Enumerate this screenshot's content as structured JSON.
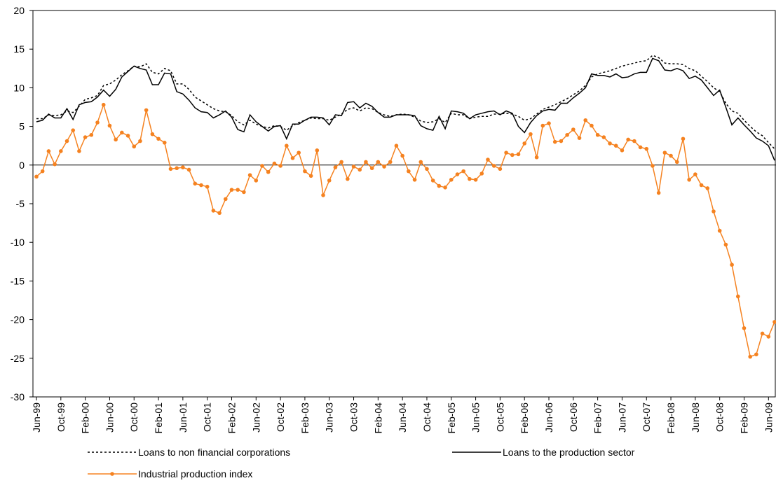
{
  "chart_data": {
    "type": "line",
    "categories": [
      "Jun-99",
      null,
      null,
      null,
      "Oct-99",
      null,
      null,
      null,
      "Feb-00",
      null,
      null,
      null,
      "Jun-00",
      null,
      null,
      null,
      "Oct-00",
      null,
      null,
      null,
      "Feb-01",
      null,
      null,
      null,
      "Jun-01",
      null,
      null,
      null,
      "Oct-01",
      null,
      null,
      null,
      "Feb-02",
      null,
      null,
      null,
      "Jun-02",
      null,
      null,
      null,
      "Oct-02",
      null,
      null,
      null,
      "Feb-03",
      null,
      null,
      null,
      "Jun-03",
      null,
      null,
      null,
      "Oct-03",
      null,
      null,
      null,
      "Feb-04",
      null,
      null,
      null,
      "Jun-04",
      null,
      null,
      null,
      "Oct-04",
      null,
      null,
      null,
      "Feb-05",
      null,
      null,
      null,
      "Jun-05",
      null,
      null,
      null,
      "Oct-05",
      null,
      null,
      null,
      "Feb-06",
      null,
      null,
      null,
      "Jun-06",
      null,
      null,
      null,
      "Oct-06",
      null,
      null,
      null,
      "Feb-07",
      null,
      null,
      null,
      "Jun-07",
      null,
      null,
      null,
      "Oct-07",
      null,
      null,
      null,
      "Feb-08",
      null,
      null,
      null,
      "Jun-08",
      null,
      null,
      null,
      "Oct-08",
      null,
      null,
      null,
      "Feb-09",
      null,
      null,
      null,
      "Jun-09",
      null
    ],
    "series": [
      {
        "name": "Loans to non financial corporations",
        "color": "#000000",
        "style": "dotted",
        "marker": false,
        "values": [
          6.0,
          6.0,
          6.5,
          6.4,
          6.5,
          7.0,
          6.8,
          7.6,
          8.5,
          8.7,
          9.0,
          10.3,
          10.5,
          11.0,
          11.7,
          12.2,
          12.8,
          12.7,
          13.1,
          12.0,
          11.8,
          12.5,
          12.2,
          10.5,
          10.5,
          9.8,
          8.8,
          8.3,
          7.8,
          7.3,
          7.0,
          6.9,
          6.4,
          5.6,
          5.2,
          5.8,
          5.3,
          5.0,
          4.8,
          5.1,
          5.0,
          4.5,
          5.1,
          5.5,
          5.8,
          6.1,
          6.0,
          6.0,
          5.8,
          6.2,
          6.6,
          7.2,
          7.4,
          7.0,
          7.4,
          7.3,
          6.8,
          6.5,
          6.3,
          6.5,
          6.6,
          6.5,
          6.2,
          5.7,
          5.5,
          5.6,
          6.0,
          5.5,
          6.7,
          6.5,
          6.5,
          6.0,
          6.2,
          6.3,
          6.3,
          6.6,
          6.6,
          6.7,
          6.6,
          6.3,
          5.8,
          6.0,
          6.6,
          7.2,
          7.5,
          7.8,
          8.2,
          8.6,
          9.1,
          9.6,
          10.3,
          11.4,
          11.8,
          12.0,
          12.2,
          12.5,
          12.8,
          13.0,
          13.2,
          13.4,
          13.5,
          14.2,
          13.9,
          13.2,
          13.1,
          13.1,
          13.0,
          12.5,
          12.2,
          11.5,
          10.8,
          10.0,
          9.5,
          8.0,
          7.0,
          6.7,
          5.8,
          5.0,
          4.3,
          3.8,
          2.9,
          2.1
        ]
      },
      {
        "name": "Loans to the production sector",
        "color": "#000000",
        "style": "solid",
        "marker": false,
        "values": [
          5.6,
          5.8,
          6.6,
          6.1,
          6.1,
          7.3,
          5.9,
          7.8,
          8.1,
          8.2,
          8.8,
          9.7,
          8.9,
          9.8,
          11.4,
          12.1,
          12.8,
          12.5,
          12.3,
          10.4,
          10.4,
          11.9,
          11.8,
          9.5,
          9.2,
          8.4,
          7.4,
          6.9,
          6.8,
          6.1,
          6.5,
          7.0,
          6.2,
          4.6,
          4.3,
          6.5,
          5.6,
          5.0,
          4.4,
          5.0,
          5.1,
          3.4,
          5.3,
          5.3,
          5.8,
          6.2,
          6.2,
          6.1,
          5.2,
          6.5,
          6.4,
          8.1,
          8.2,
          7.4,
          8.0,
          7.6,
          6.8,
          6.2,
          6.2,
          6.5,
          6.5,
          6.5,
          6.4,
          5.1,
          4.7,
          4.5,
          6.3,
          4.7,
          7.0,
          6.9,
          6.7,
          6.0,
          6.5,
          6.7,
          6.9,
          7.0,
          6.5,
          7.0,
          6.7,
          5.0,
          4.2,
          5.5,
          6.4,
          7.0,
          7.2,
          7.1,
          8.0,
          8.0,
          8.7,
          9.3,
          10.0,
          11.8,
          11.6,
          11.6,
          11.4,
          11.8,
          11.3,
          11.4,
          11.8,
          12.0,
          12.0,
          13.8,
          13.5,
          12.3,
          12.2,
          12.5,
          12.2,
          11.2,
          11.5,
          11.0,
          10.0,
          9.0,
          9.7,
          7.5,
          5.2,
          6.1,
          5.2,
          4.4,
          3.5,
          3.1,
          2.5,
          0.6
        ]
      },
      {
        "name": "Industrial production index",
        "color": "#f58220",
        "style": "solid",
        "marker": true,
        "values": [
          -1.5,
          -0.8,
          1.8,
          0.1,
          1.8,
          3.1,
          4.5,
          1.8,
          3.6,
          3.9,
          5.5,
          7.8,
          5.1,
          3.3,
          4.2,
          3.8,
          2.4,
          3.1,
          7.1,
          4.0,
          3.4,
          2.9,
          -0.5,
          -0.4,
          -0.3,
          -0.6,
          -2.4,
          -2.6,
          -2.8,
          -5.9,
          -6.2,
          -4.4,
          -3.2,
          -3.2,
          -3.5,
          -1.3,
          -2.0,
          -0.1,
          -0.9,
          0.2,
          -0.1,
          2.5,
          0.9,
          1.6,
          -0.8,
          -1.4,
          1.9,
          -3.9,
          -2.0,
          -0.3,
          0.4,
          -1.8,
          -0.2,
          -0.6,
          0.4,
          -0.4,
          0.4,
          -0.2,
          0.4,
          2.5,
          1.2,
          -0.8,
          -1.9,
          0.4,
          -0.5,
          -2.0,
          -2.7,
          -2.9,
          -1.9,
          -1.2,
          -0.8,
          -1.8,
          -1.9,
          -1.1,
          0.7,
          -0.1,
          -0.5,
          1.6,
          1.3,
          1.4,
          2.8,
          4.0,
          1.0,
          5.1,
          5.4,
          3.0,
          3.1,
          3.9,
          4.6,
          3.5,
          5.8,
          5.1,
          3.9,
          3.6,
          2.8,
          2.5,
          1.9,
          3.3,
          3.1,
          2.3,
          2.1,
          -0.1,
          -3.6,
          1.6,
          1.2,
          0.4,
          3.4,
          -1.9,
          -1.2,
          -2.6,
          -3.0,
          -6.0,
          -8.5,
          -10.3,
          -12.9,
          -17.0,
          -21.1,
          -24.8,
          -24.5,
          -21.8,
          -22.2,
          -20.3
        ]
      }
    ],
    "ylim": [
      -30,
      20
    ],
    "yticks": [
      -30,
      -25,
      -20,
      -15,
      -10,
      -5,
      0,
      5,
      10,
      15,
      20
    ],
    "grid": false
  }
}
